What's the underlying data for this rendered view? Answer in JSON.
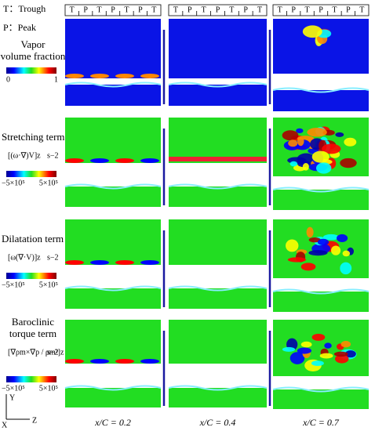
{
  "legend": {
    "trough": "T：Trough",
    "peak": "P：Peak"
  },
  "strip_labels": [
    "T",
    "P",
    "T",
    "P",
    "T",
    "P",
    "T"
  ],
  "rows": [
    {
      "title": [
        "Vapor",
        "volume fraction"
      ],
      "scale_min": "0",
      "scale_max": "1"
    },
    {
      "title": [
        "Stretching term"
      ],
      "formula": "[(ω·∇)V]z",
      "unit": "s−2",
      "scale_min": "−5×10⁵",
      "scale_max": "5×10⁵"
    },
    {
      "title": [
        "Dilatation term"
      ],
      "formula": "[ω(∇·V)]z",
      "unit": "s−2",
      "scale_min": "−5×10⁵",
      "scale_max": "5×10⁵"
    },
    {
      "title": [
        "Baroclinic",
        "torque term"
      ],
      "formula": "[∇ρm×∇p / ρm²]z",
      "unit": "s−2",
      "scale_min": "−5×10⁵",
      "scale_max": "5×10⁵"
    }
  ],
  "columns": [
    "x/C = 0.2",
    "x/C = 0.4",
    "x/C = 0.7"
  ],
  "axes": {
    "y": "Y",
    "x": "X",
    "z": "Z"
  }
}
